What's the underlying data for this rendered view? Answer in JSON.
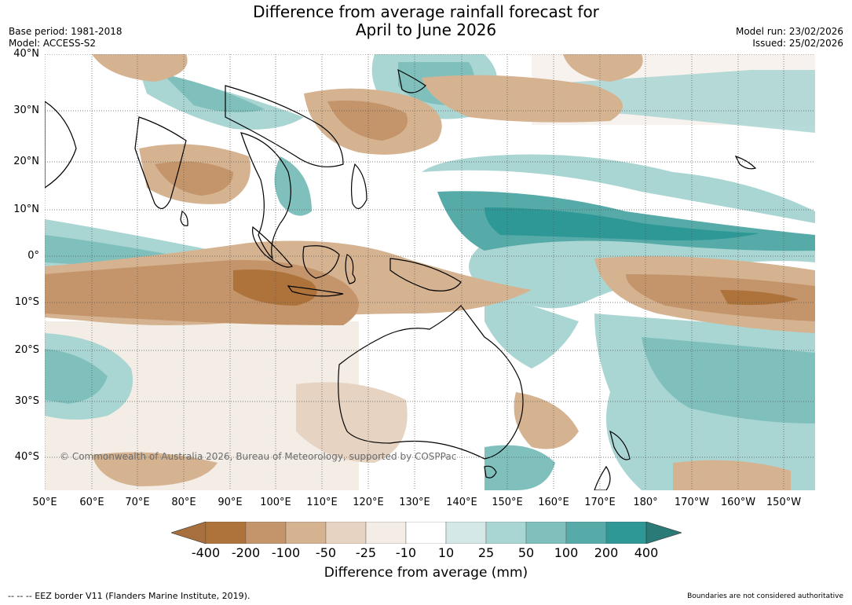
{
  "title": {
    "line1": "Difference from average rainfall forecast for",
    "line2": "April to June 2026"
  },
  "meta": {
    "base_period": "Base period: 1981-2018",
    "model": "Model: ACCESS-S2",
    "model_run": "Model run: 23/02/2026",
    "issued": "Issued: 25/02/2026"
  },
  "map": {
    "region": "Indo-Pacific, Maritime Continent and Australia",
    "lat_labels": [
      "40°N",
      "30°N",
      "20°N",
      "10°N",
      "0°",
      "10°S",
      "20°S",
      "30°S",
      "40°S"
    ],
    "lon_labels": [
      "50°E",
      "60°E",
      "70°E",
      "80°E",
      "90°E",
      "100°E",
      "110°E",
      "120°E",
      "130°E",
      "140°E",
      "150°E",
      "160°E",
      "170°E",
      "180°",
      "170°W",
      "160°W",
      "150°W"
    ],
    "copyright": "© Commonwealth of Australia 2026, Bureau of Meteorology, supported by COSPPac",
    "land_outline_color": "#000000",
    "border_color": "#888888"
  },
  "colorbar": {
    "ticks": [
      "-400",
      "-200",
      "-100",
      "-50",
      "-25",
      "-10",
      "10",
      "25",
      "50",
      "100",
      "200",
      "400"
    ],
    "colors": [
      "#a8703e",
      "#ae733b",
      "#c4946a",
      "#d5b391",
      "#e6d3c1",
      "#f3ede6",
      "#ffffff",
      "#d3e8e7",
      "#a9d5d2",
      "#7fc0bd",
      "#56aaa8",
      "#2d9896",
      "#2a7a78"
    ],
    "label": "Difference from average (mm)"
  },
  "footer": {
    "eez_note": "--  --  -- EEZ border V11 (Flanders Marine Institute, 2019).",
    "boundaries_note": "Boundaries are not considered authoritative"
  }
}
